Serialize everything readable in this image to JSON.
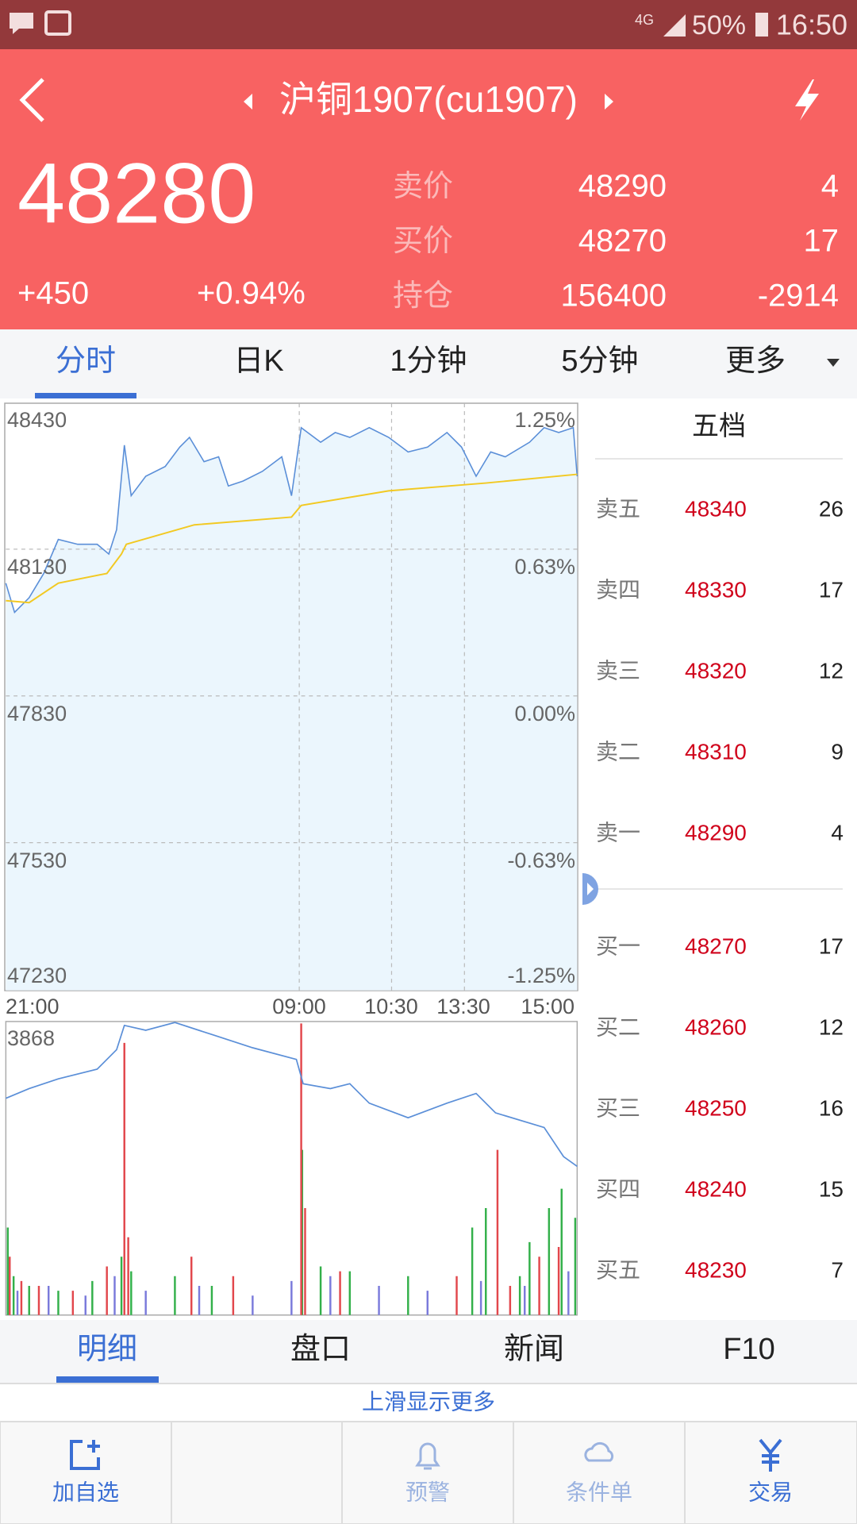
{
  "status_bar": {
    "network": "4G",
    "battery": "50%",
    "time": "16:50"
  },
  "header": {
    "title": "沪铜1907(cu1907)",
    "price": 48280,
    "change": "+450",
    "change_pct": "+0.94%",
    "quote": [
      {
        "label": "卖价",
        "price": 48290,
        "volume": 4
      },
      {
        "label": "买价",
        "price": 48270,
        "volume": 17
      },
      {
        "label": "持仓",
        "price": 156400,
        "volume": -2914
      }
    ]
  },
  "tabs": [
    "分时",
    "日K",
    "1分钟",
    "5分钟",
    "更多"
  ],
  "chart": {
    "price_labels": [
      48430,
      48130,
      47830,
      47530,
      47230
    ],
    "pct_labels": [
      "1.25%",
      "0.63%",
      "0.00%",
      "-0.63%",
      "-1.25%"
    ],
    "time_labels": [
      "21:00",
      "09:00",
      "10:30",
      "13:30",
      "15:00"
    ],
    "volume_label": 3868
  },
  "order_book": {
    "title": "五档",
    "asks": [
      {
        "label": "卖五",
        "price": 48340,
        "volume": 26
      },
      {
        "label": "卖四",
        "price": 48330,
        "volume": 17
      },
      {
        "label": "卖三",
        "price": 48320,
        "volume": 12
      },
      {
        "label": "卖二",
        "price": 48310,
        "volume": 9
      },
      {
        "label": "卖一",
        "price": 48290,
        "volume": 4
      }
    ],
    "bids": [
      {
        "label": "买一",
        "price": 48270,
        "volume": 17
      },
      {
        "label": "买二",
        "price": 48260,
        "volume": 12
      },
      {
        "label": "买三",
        "price": 48250,
        "volume": 16
      },
      {
        "label": "买四",
        "price": 48240,
        "volume": 15
      },
      {
        "label": "买五",
        "price": 48230,
        "volume": 7
      }
    ]
  },
  "bottom_tabs": [
    "明细",
    "盘口",
    "新闻",
    "F10"
  ],
  "hint": "上滑显示更多",
  "nav": [
    "加自选",
    "预警",
    "条件单",
    "交易"
  ]
}
